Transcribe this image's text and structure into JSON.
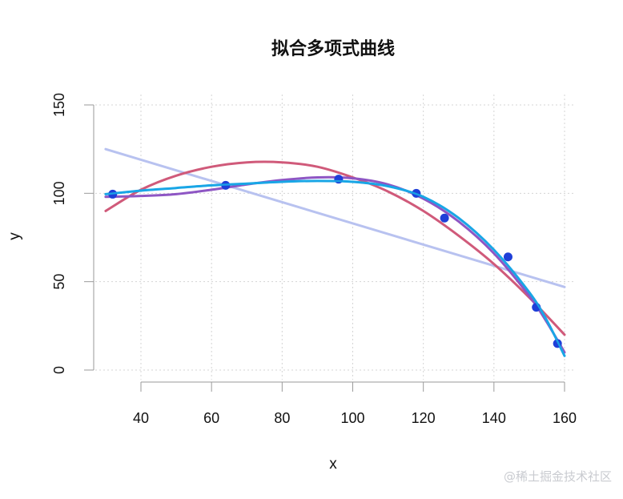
{
  "chart_data": {
    "type": "scatter",
    "title": "拟合多项式曲线",
    "xlabel": "x",
    "ylabel": "y",
    "xlim": [
      30,
      160
    ],
    "ylim": [
      0,
      150
    ],
    "x_ticks": [
      40,
      60,
      80,
      100,
      120,
      140,
      160
    ],
    "y_ticks": [
      0,
      50,
      100,
      150
    ],
    "grid": true,
    "points": {
      "color": "#1f3fd8",
      "x": [
        32,
        64,
        96,
        118,
        126,
        144,
        152,
        158
      ],
      "y": [
        99.5,
        104.5,
        108,
        100,
        86,
        64,
        35.5,
        15
      ]
    },
    "curves": [
      {
        "color": "#b8c2f0",
        "degree": 1,
        "x": [
          30,
          160
        ],
        "y": [
          125,
          47
        ]
      },
      {
        "color": "#d05a7a",
        "degree": 2,
        "x": [
          30,
          40,
          50,
          60,
          70,
          80,
          90,
          100,
          110,
          120,
          130,
          140,
          150,
          160
        ],
        "y": [
          90,
          102,
          110,
          115,
          117.5,
          117.5,
          115,
          109,
          101,
          90,
          76,
          60,
          41,
          20
        ]
      },
      {
        "color": "#8e56c4",
        "degree": 3,
        "x": [
          30,
          40,
          50,
          60,
          70,
          80,
          90,
          100,
          110,
          120,
          130,
          140,
          150,
          155,
          160
        ],
        "y": [
          98,
          98.5,
          99.5,
          102,
          105,
          107.5,
          109,
          108.5,
          105,
          97,
          84,
          66,
          42,
          27,
          10
        ]
      },
      {
        "color": "#1aa6e6",
        "degree": 4,
        "x": [
          30,
          40,
          50,
          60,
          70,
          80,
          90,
          100,
          110,
          120,
          130,
          140,
          150,
          155,
          160
        ],
        "y": [
          99.5,
          101.5,
          103,
          104.5,
          105.5,
          106.5,
          107,
          106.5,
          104,
          98,
          86,
          68,
          44,
          28,
          8
        ]
      }
    ]
  },
  "watermark": "@稀土掘金技术社区"
}
